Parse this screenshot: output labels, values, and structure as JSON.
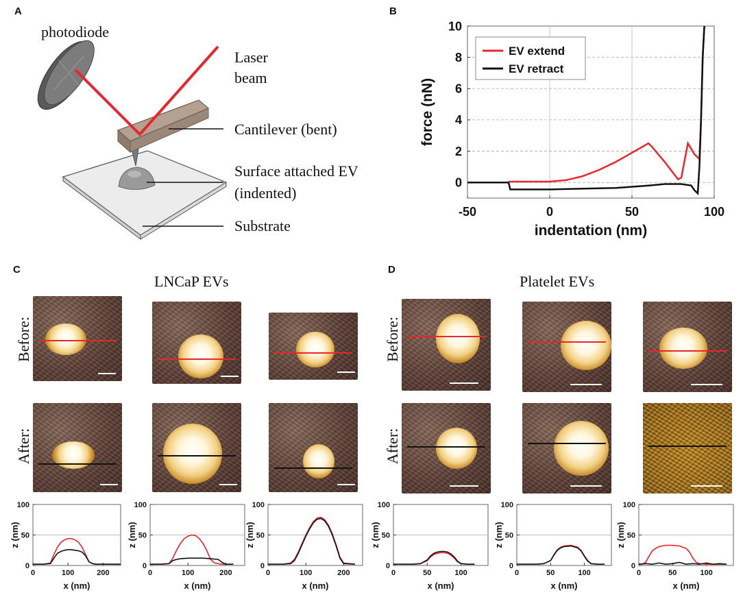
{
  "panels": {
    "A": {
      "letter": "A",
      "labels": {
        "photodiode": "photodiode",
        "laser1": "Laser",
        "laser2": "beam",
        "cantilever": "Cantilever (bent)",
        "ev1": "Surface attached EV",
        "ev2": "(indented)",
        "substrate": "Substrate"
      },
      "colors": {
        "laser": "#e8262b",
        "cantilever": "#a89484",
        "substrate": "#ececec"
      }
    },
    "B": {
      "letter": "B"
    },
    "C": {
      "letter": "C",
      "title": "LNCaP EVs",
      "before_label": "Before:",
      "after_label": "After:"
    },
    "D": {
      "letter": "D",
      "title": "Platelet EVs",
      "before_label": "Before:",
      "after_label": "After:"
    }
  },
  "chart_data": [
    {
      "id": "force-indentation",
      "type": "line",
      "title": "",
      "xlabel": "indentation (nm)",
      "ylabel": "force (nN)",
      "xlim": [
        -50,
        100
      ],
      "ylim": [
        -1,
        10
      ],
      "xticks": [
        -50,
        0,
        50,
        100
      ],
      "yticks": [
        0,
        2,
        4,
        6,
        8,
        10
      ],
      "legend": "top-left",
      "series": [
        {
          "name": "EV extend",
          "color": "#e8262b",
          "x": [
            -25,
            -10,
            0,
            10,
            20,
            30,
            40,
            50,
            55,
            60,
            62,
            70,
            78,
            80,
            84,
            88,
            91,
            92,
            93,
            94
          ],
          "y": [
            0.05,
            0.05,
            0.05,
            0.15,
            0.4,
            0.8,
            1.3,
            1.9,
            2.2,
            2.5,
            2.3,
            1.3,
            0.2,
            0.3,
            2.5,
            1.8,
            1.5,
            4,
            8,
            10
          ]
        },
        {
          "name": "EV retract",
          "color": "#111111",
          "x": [
            -50,
            -30,
            -25,
            -24,
            -10,
            0,
            20,
            40,
            60,
            70,
            80,
            86,
            88,
            90,
            91,
            92,
            93,
            94
          ],
          "y": [
            0.0,
            0.0,
            0.0,
            -0.45,
            -0.45,
            -0.45,
            -0.4,
            -0.35,
            -0.2,
            -0.1,
            -0.1,
            -0.2,
            -0.5,
            -0.7,
            1,
            4,
            8,
            10
          ]
        }
      ]
    },
    {
      "id": "c1",
      "type": "line",
      "xlabel": "x (nm)",
      "ylabel": "z (nm)",
      "xlim": [
        0,
        250
      ],
      "ylim": [
        0,
        100
      ],
      "xticks": [
        0,
        100,
        200
      ],
      "yticks": [
        0,
        50,
        100
      ],
      "series": [
        {
          "name": "before",
          "color": "#e8262b",
          "x": [
            0,
            30,
            50,
            60,
            70,
            80,
            90,
            100,
            110,
            120,
            130,
            140,
            150,
            160,
            170,
            180,
            200,
            230,
            250
          ],
          "y": [
            2,
            2,
            4,
            18,
            30,
            38,
            42,
            44,
            44,
            42,
            38,
            30,
            18,
            6,
            3,
            2,
            2,
            2,
            2
          ]
        },
        {
          "name": "after",
          "color": "#111111",
          "x": [
            0,
            30,
            50,
            60,
            70,
            80,
            90,
            100,
            110,
            120,
            130,
            140,
            150,
            160,
            170,
            180,
            200,
            230,
            250
          ],
          "y": [
            2,
            2,
            3,
            12,
            20,
            23,
            25,
            26,
            26,
            25,
            24,
            22,
            16,
            6,
            3,
            2,
            2,
            2,
            2
          ]
        }
      ]
    },
    {
      "id": "c2",
      "type": "line",
      "xlabel": "x (nm)",
      "ylabel": "z (nm)",
      "xlim": [
        0,
        250
      ],
      "ylim": [
        0,
        100
      ],
      "xticks": [
        0,
        100,
        200
      ],
      "yticks": [
        0,
        50,
        100
      ],
      "series": [
        {
          "name": "before",
          "color": "#e8262b",
          "x": [
            0,
            30,
            50,
            60,
            70,
            80,
            90,
            100,
            110,
            120,
            130,
            140,
            150,
            160,
            170,
            190,
            220
          ],
          "y": [
            2,
            2,
            3,
            12,
            25,
            36,
            44,
            48,
            50,
            49,
            44,
            36,
            24,
            10,
            4,
            2,
            2
          ]
        },
        {
          "name": "after",
          "color": "#111111",
          "x": [
            0,
            30,
            50,
            60,
            70,
            80,
            100,
            120,
            140,
            160,
            180,
            190,
            200,
            220
          ],
          "y": [
            2,
            2,
            3,
            8,
            10,
            11,
            12,
            12,
            12,
            11,
            10,
            5,
            2,
            2
          ]
        }
      ]
    },
    {
      "id": "c3",
      "type": "line",
      "xlabel": "x (nm)",
      "ylabel": "z (nm)",
      "xlim": [
        0,
        250
      ],
      "ylim": [
        0,
        100
      ],
      "xticks": [
        0,
        100,
        200
      ],
      "yticks": [
        0,
        50,
        100
      ],
      "series": [
        {
          "name": "before",
          "color": "#e8262b",
          "x": [
            0,
            40,
            60,
            70,
            80,
            90,
            100,
            110,
            120,
            130,
            140,
            150,
            160,
            170,
            180,
            190,
            200,
            230
          ],
          "y": [
            2,
            2,
            4,
            10,
            22,
            36,
            50,
            62,
            72,
            78,
            79,
            75,
            66,
            52,
            34,
            14,
            4,
            2
          ]
        },
        {
          "name": "after",
          "color": "#111111",
          "x": [
            0,
            40,
            60,
            70,
            80,
            90,
            100,
            110,
            120,
            130,
            140,
            150,
            160,
            170,
            180,
            190,
            200,
            230
          ],
          "y": [
            2,
            2,
            3,
            8,
            20,
            34,
            48,
            60,
            70,
            76,
            77,
            73,
            64,
            50,
            32,
            12,
            3,
            2
          ]
        }
      ]
    },
    {
      "id": "d1",
      "type": "line",
      "xlabel": "x (nm)",
      "ylabel": "z (nm)",
      "xlim": [
        0,
        140
      ],
      "ylim": [
        0,
        100
      ],
      "xticks": [
        0,
        50,
        100
      ],
      "yticks": [
        0,
        50,
        100
      ],
      "series": [
        {
          "name": "before",
          "color": "#e8262b",
          "x": [
            0,
            30,
            40,
            50,
            55,
            60,
            65,
            70,
            75,
            80,
            85,
            90,
            95,
            100,
            110,
            120
          ],
          "y": [
            2,
            2,
            3,
            8,
            14,
            18,
            20,
            21,
            21,
            20,
            17,
            12,
            6,
            3,
            2,
            2
          ]
        },
        {
          "name": "after",
          "color": "#111111",
          "x": [
            0,
            30,
            40,
            50,
            55,
            60,
            65,
            70,
            75,
            80,
            85,
            90,
            95,
            100,
            110,
            120
          ],
          "y": [
            2,
            2,
            3,
            9,
            16,
            20,
            22,
            23,
            23,
            22,
            19,
            14,
            7,
            3,
            2,
            2
          ]
        }
      ]
    },
    {
      "id": "d2",
      "type": "line",
      "xlabel": "x (nm)",
      "ylabel": "z (nm)",
      "xlim": [
        0,
        140
      ],
      "ylim": [
        0,
        100
      ],
      "xticks": [
        0,
        50,
        100
      ],
      "yticks": [
        0,
        50,
        100
      ],
      "series": [
        {
          "name": "before",
          "color": "#e8262b",
          "x": [
            0,
            30,
            40,
            50,
            55,
            60,
            65,
            70,
            80,
            90,
            95,
            100,
            105,
            110,
            120,
            130
          ],
          "y": [
            2,
            2,
            3,
            8,
            18,
            26,
            30,
            32,
            33,
            30,
            25,
            16,
            8,
            3,
            2,
            2
          ]
        },
        {
          "name": "after",
          "color": "#111111",
          "x": [
            0,
            30,
            40,
            50,
            55,
            60,
            65,
            70,
            80,
            90,
            95,
            100,
            105,
            110,
            120,
            130
          ],
          "y": [
            2,
            2,
            3,
            8,
            17,
            25,
            29,
            31,
            32,
            29,
            24,
            15,
            7,
            3,
            2,
            2
          ]
        }
      ]
    },
    {
      "id": "d3",
      "type": "line",
      "xlabel": "x (nm)",
      "ylabel": "z (nm)",
      "xlim": [
        0,
        140
      ],
      "ylim": [
        0,
        100
      ],
      "xticks": [
        0,
        50,
        100
      ],
      "yticks": [
        0,
        50,
        100
      ],
      "series": [
        {
          "name": "before",
          "color": "#e8262b",
          "x": [
            0,
            5,
            10,
            15,
            20,
            25,
            30,
            40,
            50,
            60,
            70,
            75,
            80,
            85,
            90,
            100,
            120,
            130
          ],
          "y": [
            2,
            2,
            5,
            15,
            24,
            28,
            31,
            33,
            33,
            32,
            28,
            22,
            12,
            5,
            3,
            2,
            2,
            2
          ]
        },
        {
          "name": "after",
          "color": "#111111",
          "x": [
            0,
            10,
            20,
            30,
            40,
            50,
            60,
            70,
            80,
            90,
            100,
            110,
            120,
            130
          ],
          "y": [
            2,
            3,
            2,
            4,
            2,
            3,
            5,
            2,
            3,
            2,
            4,
            2,
            3,
            2
          ]
        }
      ]
    }
  ]
}
